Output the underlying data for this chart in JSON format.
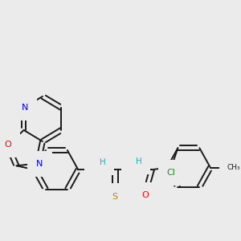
{
  "bg_color": "#ebebeb",
  "bond_color": "#1a1a1a",
  "line_width": 1.4,
  "font_size": 8.0,
  "atom_colors": {
    "O": "#ff0000",
    "N": "#0000ff",
    "S": "#b8860b",
    "Cl": "#228b22",
    "H": "#20b2aa",
    "C": "#1a1a1a"
  }
}
